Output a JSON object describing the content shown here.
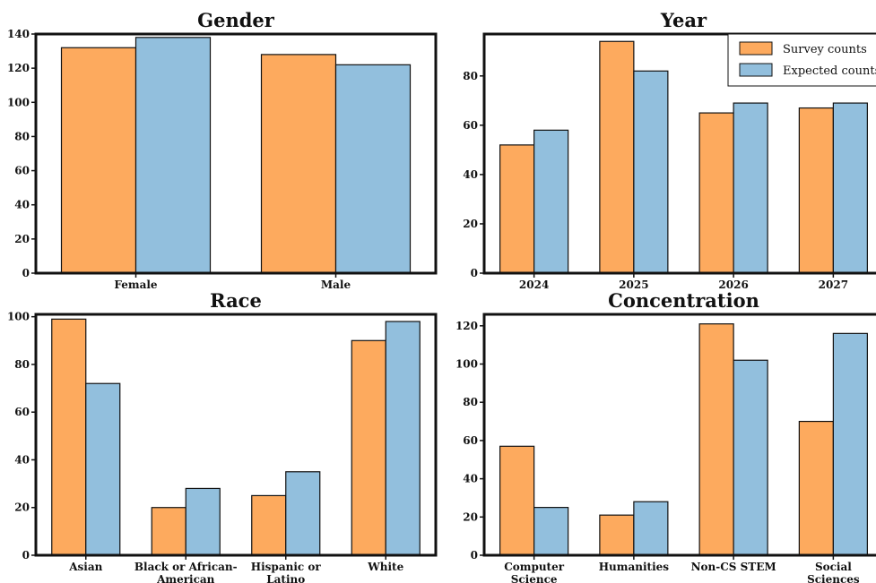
{
  "colors": {
    "survey": "#fdaa5e",
    "expected": "#92bfdd",
    "stroke": "#111111"
  },
  "legend": {
    "survey_label": "Survey counts",
    "expected_label": "Expected counts",
    "placement": "upper-right of Year panel"
  },
  "chart_data": [
    {
      "type": "bar",
      "title": "Gender",
      "categories": [
        "Female",
        "Male"
      ],
      "series": [
        {
          "name": "Survey counts",
          "values": [
            132,
            128
          ]
        },
        {
          "name": "Expected counts",
          "values": [
            138,
            122
          ]
        }
      ],
      "ylim": [
        0,
        140
      ],
      "yticks": [
        0,
        20,
        40,
        60,
        80,
        100,
        120,
        140
      ],
      "grid": false
    },
    {
      "type": "bar",
      "title": "Year",
      "categories": [
        "2024",
        "2025",
        "2026",
        "2027"
      ],
      "series": [
        {
          "name": "Survey counts",
          "values": [
            52,
            94,
            65,
            67
          ]
        },
        {
          "name": "Expected counts",
          "values": [
            58,
            82,
            69,
            69
          ]
        }
      ],
      "ylim": [
        0,
        97
      ],
      "yticks": [
        0,
        20,
        40,
        60,
        80
      ],
      "grid": false
    },
    {
      "type": "bar",
      "title": "Race",
      "categories": [
        "Asian",
        "Black or African-\nAmerican",
        "Hispanic or\nLatino",
        "White"
      ],
      "series": [
        {
          "name": "Survey counts",
          "values": [
            99,
            20,
            25,
            90
          ]
        },
        {
          "name": "Expected counts",
          "values": [
            72,
            28,
            35,
            98
          ]
        }
      ],
      "ylim": [
        0,
        101
      ],
      "yticks": [
        0,
        20,
        40,
        60,
        80,
        100
      ],
      "grid": false
    },
    {
      "type": "bar",
      "title": "Concentration",
      "categories": [
        "Computer\nScience",
        "Humanities",
        "Non-CS STEM",
        "Social\nSciences"
      ],
      "series": [
        {
          "name": "Survey counts",
          "values": [
            57,
            21,
            121,
            70
          ]
        },
        {
          "name": "Expected counts",
          "values": [
            25,
            28,
            102,
            116
          ]
        }
      ],
      "ylim": [
        0,
        126
      ],
      "yticks": [
        0,
        20,
        40,
        60,
        80,
        100,
        120
      ],
      "grid": false
    }
  ]
}
